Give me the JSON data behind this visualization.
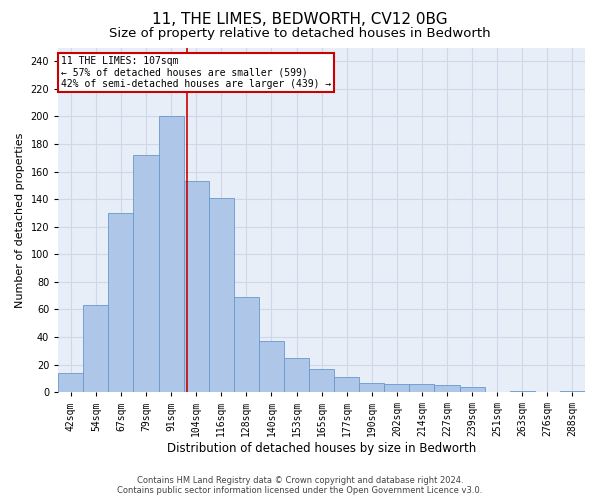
{
  "title": "11, THE LIMES, BEDWORTH, CV12 0BG",
  "subtitle": "Size of property relative to detached houses in Bedworth",
  "xlabel": "Distribution of detached houses by size in Bedworth",
  "ylabel": "Number of detached properties",
  "categories": [
    "42sqm",
    "54sqm",
    "67sqm",
    "79sqm",
    "91sqm",
    "104sqm",
    "116sqm",
    "128sqm",
    "140sqm",
    "153sqm",
    "165sqm",
    "177sqm",
    "190sqm",
    "202sqm",
    "214sqm",
    "227sqm",
    "239sqm",
    "251sqm",
    "263sqm",
    "276sqm",
    "288sqm"
  ],
  "bar_heights": [
    14,
    63,
    130,
    172,
    200,
    153,
    141,
    69,
    37,
    25,
    17,
    11,
    7,
    6,
    6,
    5,
    4,
    0,
    1,
    0,
    1
  ],
  "bar_color": "#aec6e8",
  "bar_edge_color": "#6699cc",
  "property_line_index": 4.65,
  "property_line_label": "11 THE LIMES: 107sqm",
  "annotation_line1": "← 57% of detached houses are smaller (599)",
  "annotation_line2": "42% of semi-detached houses are larger (439) →",
  "annotation_box_color": "#ffffff",
  "annotation_box_edge": "#cc0000",
  "vline_color": "#cc0000",
  "ylim": [
    0,
    250
  ],
  "yticks": [
    0,
    20,
    40,
    60,
    80,
    100,
    120,
    140,
    160,
    180,
    200,
    220,
    240
  ],
  "grid_color": "#d0d8e8",
  "bg_color": "#e8eef8",
  "footer1": "Contains HM Land Registry data © Crown copyright and database right 2024.",
  "footer2": "Contains public sector information licensed under the Open Government Licence v3.0.",
  "title_fontsize": 11,
  "subtitle_fontsize": 9.5,
  "xlabel_fontsize": 8.5,
  "ylabel_fontsize": 8,
  "tick_fontsize": 7
}
